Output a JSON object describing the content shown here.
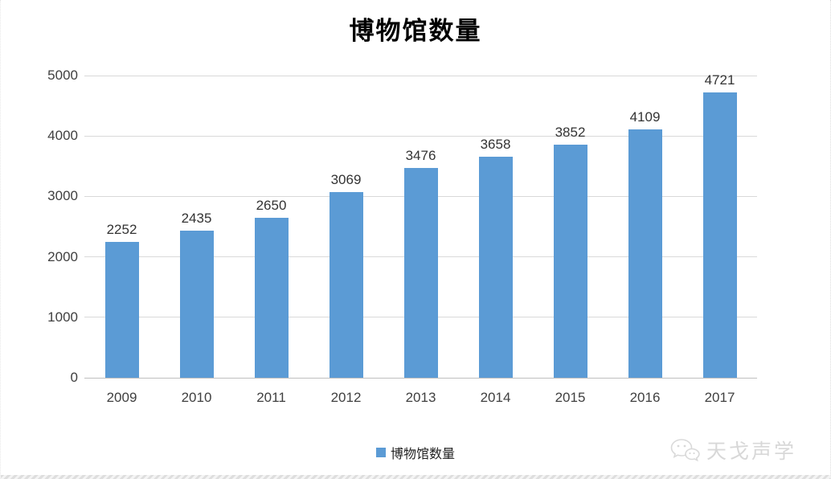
{
  "chart_data": {
    "type": "bar",
    "title": "博物馆数量",
    "categories": [
      "2009",
      "2010",
      "2011",
      "2012",
      "2013",
      "2014",
      "2015",
      "2016",
      "2017"
    ],
    "values": [
      2252,
      2435,
      2650,
      3069,
      3476,
      3658,
      3852,
      4109,
      4721
    ],
    "series_name": "博物馆数量",
    "xlabel": "",
    "ylabel": "",
    "ylim": [
      0,
      5000
    ],
    "yticks": [
      0,
      1000,
      2000,
      3000,
      4000,
      5000
    ],
    "grid": true,
    "legend_position": "bottom",
    "bar_color": "#5B9BD5",
    "gridline_color": "#D9D9D9",
    "label_color": "#404040"
  },
  "legend": {
    "label": "博物馆数量"
  },
  "watermark": {
    "text": "天戈声学",
    "icon": "wechat-icon"
  }
}
